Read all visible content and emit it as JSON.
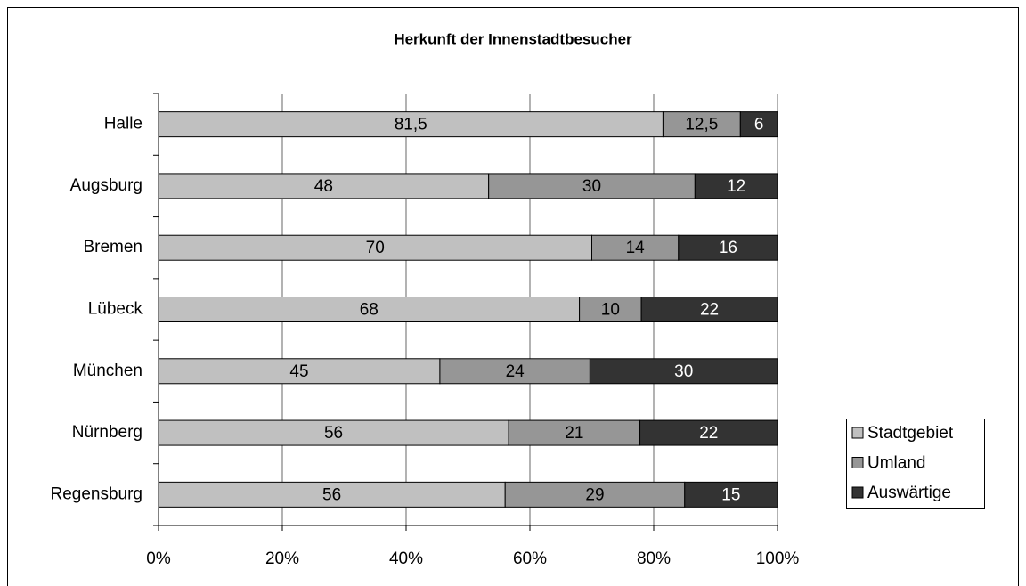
{
  "chart_data": {
    "type": "bar",
    "orientation": "horizontal",
    "stacking": "percent",
    "title": "Herkunft der Innenstadtbesucher",
    "categories": [
      "Halle",
      "Augsburg",
      "Bremen",
      "Lübeck",
      "München",
      "Nürnberg",
      "Regensburg"
    ],
    "series": [
      {
        "name": "Stadtgebiet",
        "color": "#c0c0c0",
        "values": [
          81.5,
          48,
          70,
          68,
          45,
          56,
          56
        ],
        "value_labels": [
          "81,5",
          "48",
          "70",
          "68",
          "45",
          "56",
          "56"
        ]
      },
      {
        "name": "Umland",
        "color": "#969696",
        "values": [
          12.5,
          30,
          14,
          10,
          24,
          21,
          29
        ],
        "value_labels": [
          "12,5",
          "30",
          "14",
          "10",
          "24",
          "21",
          "29"
        ]
      },
      {
        "name": "Auswärtige",
        "color": "#333333",
        "values": [
          6,
          12,
          16,
          22,
          30,
          22,
          15
        ]
      }
    ],
    "xlim": [
      0,
      100
    ],
    "xticks": [
      {
        "value": 0,
        "label": "0%"
      },
      {
        "value": 20,
        "label": "20%"
      },
      {
        "value": 40,
        "label": "40%"
      },
      {
        "value": 60,
        "label": "60%"
      },
      {
        "value": 80,
        "label": "80%"
      },
      {
        "value": 100,
        "label": "100%"
      }
    ],
    "grid": true,
    "legend": "right"
  }
}
